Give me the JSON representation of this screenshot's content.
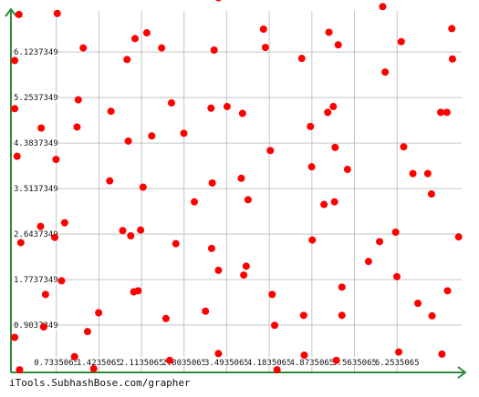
{
  "credit": "iTools.SubhashBose.com/grapher",
  "colors": {
    "axis": "#2e8b3a",
    "grid": "#c4c4c4",
    "point": "#ff0000",
    "background": "#ffffff",
    "tick_text": "#111111"
  },
  "chart_data": {
    "type": "scatter",
    "title": "",
    "xlabel": "",
    "ylabel": "",
    "grid": true,
    "xlim": [
      0,
      7.1
    ],
    "ylim": [
      0,
      7.35
    ],
    "xticks": [
      0.7335065,
      1.4235065,
      2.1135065,
      2.8035065,
      3.4935065,
      4.1835065,
      4.8735065,
      5.5635065,
      6.2535065
    ],
    "xtick_labels": [
      "0.7335065",
      "1.4235065",
      "2.1135065",
      "2.8035065",
      "3.4935065",
      "4.1835065",
      "4.8735065",
      "5.5635065",
      "6.2535065"
    ],
    "yticks": [
      0.9037349,
      1.7737349,
      2.6437349,
      3.5137349,
      4.3837349,
      5.2537349,
      6.1237349
    ],
    "ytick_labels": [
      "0.9037349",
      "1.7737349",
      "2.6437349",
      "3.5137349",
      "4.3837349",
      "5.2537349",
      "6.1237349"
    ],
    "series": [
      {
        "points": [
          [
            0.13,
            6.84
          ],
          [
            0.06,
            5.96
          ],
          [
            0.06,
            5.04
          ],
          [
            0.1,
            4.13
          ],
          [
            0.16,
            2.48
          ],
          [
            0.06,
            0.67
          ],
          [
            0.14,
            0.05
          ],
          [
            0.49,
            4.67
          ],
          [
            0.48,
            2.79
          ],
          [
            0.53,
            0.87
          ],
          [
            0.56,
            1.49
          ],
          [
            0.71,
            2.58
          ],
          [
            0.73,
            4.07
          ],
          [
            0.75,
            6.86
          ],
          [
            0.82,
            1.75
          ],
          [
            0.87,
            2.86
          ],
          [
            1.03,
            0.3
          ],
          [
            1.07,
            4.69
          ],
          [
            1.09,
            5.21
          ],
          [
            1.17,
            6.2
          ],
          [
            1.24,
            0.78
          ],
          [
            1.34,
            0.07
          ],
          [
            1.42,
            1.14
          ],
          [
            1.6,
            3.66
          ],
          [
            1.62,
            4.99
          ],
          [
            1.81,
            2.71
          ],
          [
            1.88,
            5.98
          ],
          [
            1.9,
            4.42
          ],
          [
            1.94,
            2.61
          ],
          [
            1.99,
            1.54
          ],
          [
            2.01,
            6.38
          ],
          [
            2.06,
            1.56
          ],
          [
            2.1,
            2.72
          ],
          [
            2.14,
            3.54
          ],
          [
            2.2,
            6.49
          ],
          [
            2.28,
            4.52
          ],
          [
            2.44,
            6.2
          ],
          [
            2.51,
            1.03
          ],
          [
            2.57,
            0.23
          ],
          [
            2.6,
            5.15
          ],
          [
            2.67,
            2.46
          ],
          [
            2.8,
            4.57
          ],
          [
            2.97,
            3.26
          ],
          [
            3.15,
            1.17
          ],
          [
            3.24,
            5.05
          ],
          [
            3.25,
            2.37
          ],
          [
            3.26,
            3.62
          ],
          [
            3.29,
            6.16
          ],
          [
            3.36,
            7.16
          ],
          [
            3.36,
            1.95
          ],
          [
            3.36,
            0.36
          ],
          [
            3.5,
            5.08
          ],
          [
            3.73,
            3.71
          ],
          [
            3.75,
            4.95
          ],
          [
            3.77,
            1.86
          ],
          [
            3.81,
            2.03
          ],
          [
            3.84,
            3.3
          ],
          [
            4.09,
            6.56
          ],
          [
            4.12,
            6.21
          ],
          [
            4.2,
            4.24
          ],
          [
            4.23,
            1.49
          ],
          [
            4.27,
            0.9
          ],
          [
            4.31,
            0.05
          ],
          [
            4.34,
            7.2
          ],
          [
            4.71,
            6.0
          ],
          [
            4.74,
            1.09
          ],
          [
            4.75,
            0.33
          ],
          [
            4.85,
            4.7
          ],
          [
            4.87,
            3.93
          ],
          [
            4.88,
            2.53
          ],
          [
            5.07,
            3.21
          ],
          [
            5.13,
            4.97
          ],
          [
            5.15,
            6.5
          ],
          [
            5.22,
            5.08
          ],
          [
            5.24,
            3.26
          ],
          [
            5.27,
            0.23
          ],
          [
            5.25,
            4.3
          ],
          [
            5.3,
            6.26
          ],
          [
            5.36,
            1.63
          ],
          [
            5.36,
            1.09
          ],
          [
            5.45,
            3.88
          ],
          [
            5.79,
            2.12
          ],
          [
            5.97,
            2.5
          ],
          [
            6.02,
            6.99
          ],
          [
            6.06,
            5.74
          ],
          [
            6.23,
            2.68
          ],
          [
            6.25,
            1.83
          ],
          [
            6.28,
            0.39
          ],
          [
            6.32,
            6.32
          ],
          [
            6.36,
            4.31
          ],
          [
            6.51,
            3.8
          ],
          [
            6.59,
            1.32
          ],
          [
            6.75,
            3.8
          ],
          [
            6.81,
            3.41
          ],
          [
            6.82,
            1.08
          ],
          [
            6.98,
            0.35
          ],
          [
            6.96,
            4.97
          ],
          [
            7.06,
            4.97
          ],
          [
            7.07,
            1.56
          ],
          [
            7.14,
            6.57
          ],
          [
            7.15,
            5.99
          ],
          [
            7.25,
            2.59
          ]
        ]
      }
    ]
  }
}
